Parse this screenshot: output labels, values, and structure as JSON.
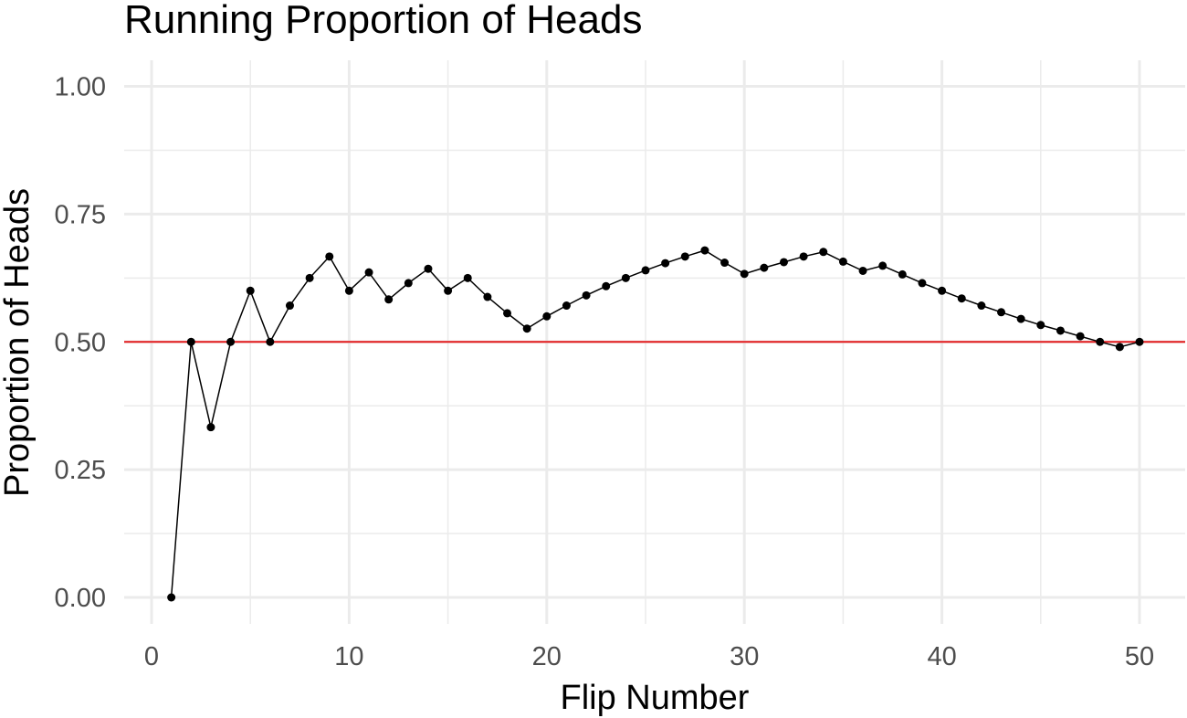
{
  "chart_data": {
    "type": "line",
    "title": "Running Proportion of Heads",
    "xlabel": "Flip Number",
    "ylabel": "Proportion of Heads",
    "xlim": [
      0,
      50
    ],
    "ylim": [
      0,
      1
    ],
    "x_ticks": [
      0,
      10,
      20,
      30,
      40,
      50
    ],
    "x_tick_labels": [
      "0",
      "10",
      "20",
      "30",
      "40",
      "50"
    ],
    "y_ticks": [
      0,
      0.25,
      0.5,
      0.75,
      1
    ],
    "y_tick_labels": [
      "0.00",
      "0.25",
      "0.50",
      "0.75",
      "1.00"
    ],
    "grid": true,
    "series": [
      {
        "x": [
          1,
          2,
          3,
          4,
          5,
          6,
          7,
          8,
          9,
          10,
          11,
          12,
          13,
          14,
          15,
          16,
          17,
          18,
          19,
          20,
          21,
          22,
          23,
          24,
          25,
          26,
          27,
          28,
          29,
          30,
          31,
          32,
          33,
          34,
          35,
          36,
          37,
          38,
          39,
          40,
          41,
          42,
          43,
          44,
          45,
          46,
          47,
          48,
          49,
          50
        ],
        "values": [
          0.0,
          0.5,
          0.333,
          0.5,
          0.6,
          0.5,
          0.571,
          0.625,
          0.667,
          0.6,
          0.636,
          0.583,
          0.615,
          0.643,
          0.6,
          0.625,
          0.588,
          0.556,
          0.526,
          0.55,
          0.571,
          0.591,
          0.609,
          0.625,
          0.64,
          0.654,
          0.667,
          0.679,
          0.655,
          0.633,
          0.645,
          0.656,
          0.667,
          0.676,
          0.657,
          0.639,
          0.649,
          0.632,
          0.615,
          0.6,
          0.585,
          0.571,
          0.558,
          0.545,
          0.533,
          0.522,
          0.511,
          0.5,
          0.49,
          0.5
        ],
        "color": "#000000"
      }
    ],
    "reference_line": {
      "y": 0.5,
      "color": "#e31a1c"
    }
  }
}
